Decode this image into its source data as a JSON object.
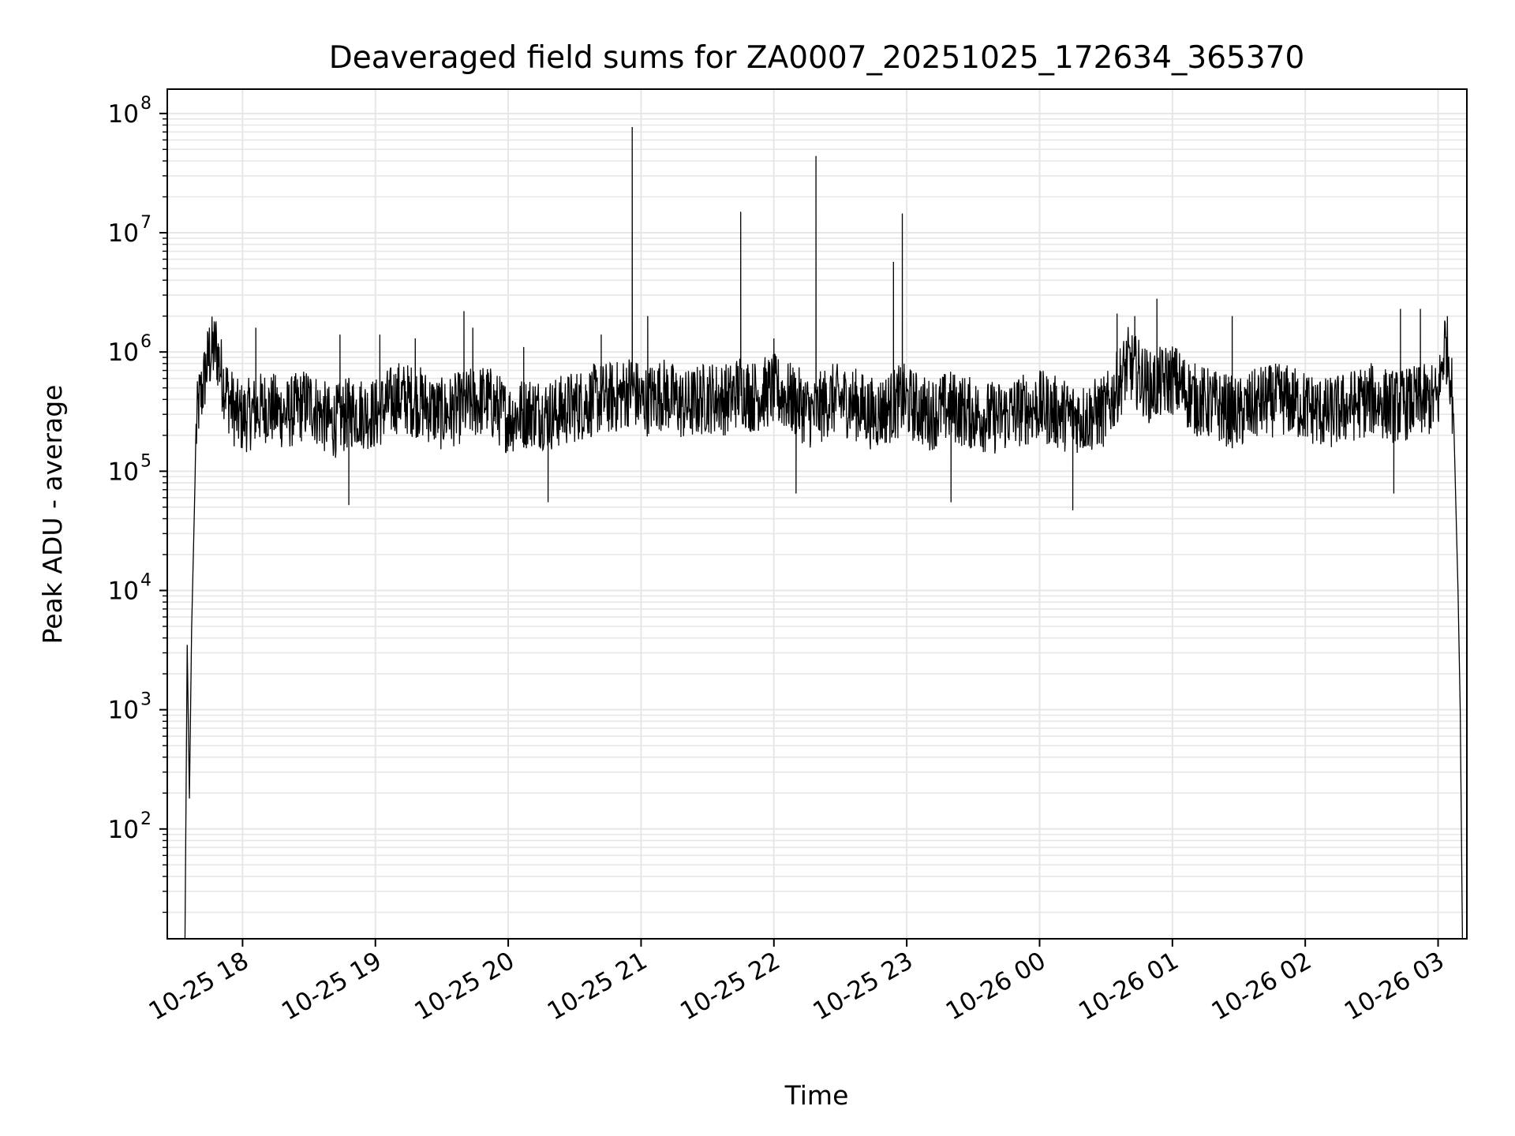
{
  "chart_data": {
    "type": "line",
    "title": "Deaveraged field sums for ZA0007_20251025_172634_365370",
    "xlabel": "Time",
    "ylabel": "Peak ADU - average",
    "yscale": "log",
    "ylim": [
      12,
      160000000
    ],
    "xlim": [
      "2025-10-25 17:26",
      "2025-10-26 03:13"
    ],
    "grid": true,
    "line_color": "#000000",
    "grid_color": "#e6e6e6",
    "x_ticks": [
      {
        "t": "2025-10-25 18:00",
        "label": "10-25 18"
      },
      {
        "t": "2025-10-25 19:00",
        "label": "10-25 19"
      },
      {
        "t": "2025-10-25 20:00",
        "label": "10-25 20"
      },
      {
        "t": "2025-10-25 21:00",
        "label": "10-25 21"
      },
      {
        "t": "2025-10-25 22:00",
        "label": "10-25 22"
      },
      {
        "t": "2025-10-25 23:00",
        "label": "10-25 23"
      },
      {
        "t": "2025-10-26 00:00",
        "label": "10-26 00"
      },
      {
        "t": "2025-10-26 01:00",
        "label": "10-26 01"
      },
      {
        "t": "2025-10-26 02:00",
        "label": "10-26 02"
      },
      {
        "t": "2025-10-26 03:00",
        "label": "10-26 03"
      }
    ],
    "y_ticks": [
      {
        "value": 100,
        "base": "10",
        "exp": "2"
      },
      {
        "value": 1000,
        "base": "10",
        "exp": "3"
      },
      {
        "value": 10000,
        "base": "10",
        "exp": "4"
      },
      {
        "value": 100000,
        "base": "10",
        "exp": "5"
      },
      {
        "value": 1000000,
        "base": "10",
        "exp": "6"
      },
      {
        "value": 10000000,
        "base": "10",
        "exp": "7"
      },
      {
        "value": 100000000,
        "base": "10",
        "exp": "8"
      }
    ],
    "series": [
      {
        "x": [
          "2025-10-25 17:34",
          "2025-10-25 17:35",
          "2025-10-25 17:36",
          "2025-10-25 17:37",
          "2025-10-25 17:38",
          "2025-10-25 17:39",
          "2025-10-25 17:40",
          "2025-10-25 17:42",
          "2025-10-25 17:44",
          "2025-10-25 17:46",
          "2025-10-25 17:48",
          "2025-10-25 17:51",
          "2025-10-25 17:54",
          "2025-10-25 17:57",
          "2025-10-25 18:00",
          "2025-10-25 18:10",
          "2025-10-25 18:20",
          "2025-10-25 18:30",
          "2025-10-25 18:40",
          "2025-10-25 18:50",
          "2025-10-25 19:00",
          "2025-10-25 19:10",
          "2025-10-25 19:20",
          "2025-10-25 19:30",
          "2025-10-25 19:40",
          "2025-10-25 19:50",
          "2025-10-25 20:00",
          "2025-10-25 20:10",
          "2025-10-25 20:20",
          "2025-10-25 20:30",
          "2025-10-25 20:40",
          "2025-10-25 20:50",
          "2025-10-25 20:56",
          "2025-10-25 21:00",
          "2025-10-25 21:10",
          "2025-10-25 21:20",
          "2025-10-25 21:30",
          "2025-10-25 21:40",
          "2025-10-25 21:45",
          "2025-10-25 21:50",
          "2025-10-25 22:00",
          "2025-10-25 22:10",
          "2025-10-25 22:18",
          "2025-10-25 22:25",
          "2025-10-25 22:35",
          "2025-10-25 22:45",
          "2025-10-25 22:53",
          "2025-10-25 22:58",
          "2025-10-25 23:10",
          "2025-10-25 23:20",
          "2025-10-25 23:30",
          "2025-10-25 23:40",
          "2025-10-25 23:50",
          "2025-10-26 00:00",
          "2025-10-26 00:10",
          "2025-10-26 00:20",
          "2025-10-26 00:30",
          "2025-10-26 00:40",
          "2025-10-26 00:50",
          "2025-10-26 01:00",
          "2025-10-26 01:10",
          "2025-10-26 01:20",
          "2025-10-26 01:30",
          "2025-10-26 01:40",
          "2025-10-26 01:50",
          "2025-10-26 02:00",
          "2025-10-26 02:10",
          "2025-10-26 02:20",
          "2025-10-26 02:30",
          "2025-10-26 02:40",
          "2025-10-26 02:50",
          "2025-10-26 03:00",
          "2025-10-26 03:03",
          "2025-10-26 03:05",
          "2025-10-26 03:07",
          "2025-10-26 03:09",
          "2025-10-26 03:10",
          "2025-10-26 03:11"
        ],
        "y": [
          12,
          3500,
          180,
          4800,
          30000,
          200000,
          350000,
          500000,
          800000,
          1000000,
          1100000,
          600000,
          400000,
          300000,
          280000,
          350000,
          300000,
          380000,
          250000,
          320000,
          300000,
          420000,
          380000,
          300000,
          350000,
          400000,
          280000,
          320000,
          300000,
          350000,
          400000,
          420000,
          500000,
          380000,
          450000,
          350000,
          420000,
          400000,
          500000,
          420000,
          480000,
          380000,
          300000,
          400000,
          380000,
          300000,
          350000,
          400000,
          300000,
          350000,
          300000,
          280000,
          320000,
          350000,
          300000,
          280000,
          320000,
          800000,
          500000,
          600000,
          400000,
          350000,
          300000,
          380000,
          400000,
          350000,
          300000,
          350000,
          400000,
          350000,
          380000,
          400000,
          1200000,
          900000,
          300000,
          10000,
          1000,
          12
        ],
        "spikes": [
          {
            "t": "2025-10-25 17:45",
            "value": 1600000
          },
          {
            "t": "2025-10-25 18:06",
            "value": 1600000
          },
          {
            "t": "2025-10-25 18:44",
            "value": 1400000
          },
          {
            "t": "2025-10-25 19:02",
            "value": 1400000
          },
          {
            "t": "2025-10-25 19:18",
            "value": 1300000
          },
          {
            "t": "2025-10-25 19:40",
            "value": 2200000
          },
          {
            "t": "2025-10-25 19:44",
            "value": 1600000
          },
          {
            "t": "2025-10-25 20:07",
            "value": 1100000
          },
          {
            "t": "2025-10-25 20:42",
            "value": 1400000
          },
          {
            "t": "2025-10-25 20:56",
            "value": 77000000
          },
          {
            "t": "2025-10-25 21:03",
            "value": 2000000
          },
          {
            "t": "2025-10-25 21:45",
            "value": 15000000
          },
          {
            "t": "2025-10-25 22:00",
            "value": 1300000
          },
          {
            "t": "2025-10-25 22:19",
            "value": 44000000
          },
          {
            "t": "2025-10-25 22:54",
            "value": 5700000
          },
          {
            "t": "2025-10-25 22:58",
            "value": 14500000
          },
          {
            "t": "2025-10-26 00:35",
            "value": 2100000
          },
          {
            "t": "2025-10-26 00:43",
            "value": 2000000
          },
          {
            "t": "2025-10-26 00:53",
            "value": 2800000
          },
          {
            "t": "2025-10-26 01:27",
            "value": 2000000
          },
          {
            "t": "2025-10-26 02:43",
            "value": 2300000
          },
          {
            "t": "2025-10-26 02:52",
            "value": 2300000
          }
        ],
        "dips": [
          {
            "t": "2025-10-25 18:48",
            "value": 52000
          },
          {
            "t": "2025-10-25 20:18",
            "value": 55000
          },
          {
            "t": "2025-10-25 23:20",
            "value": 55000
          },
          {
            "t": "2025-10-26 00:15",
            "value": 47000
          },
          {
            "t": "2025-10-25 22:10",
            "value": 65000
          },
          {
            "t": "2025-10-26 02:40",
            "value": 65000
          }
        ]
      }
    ]
  }
}
